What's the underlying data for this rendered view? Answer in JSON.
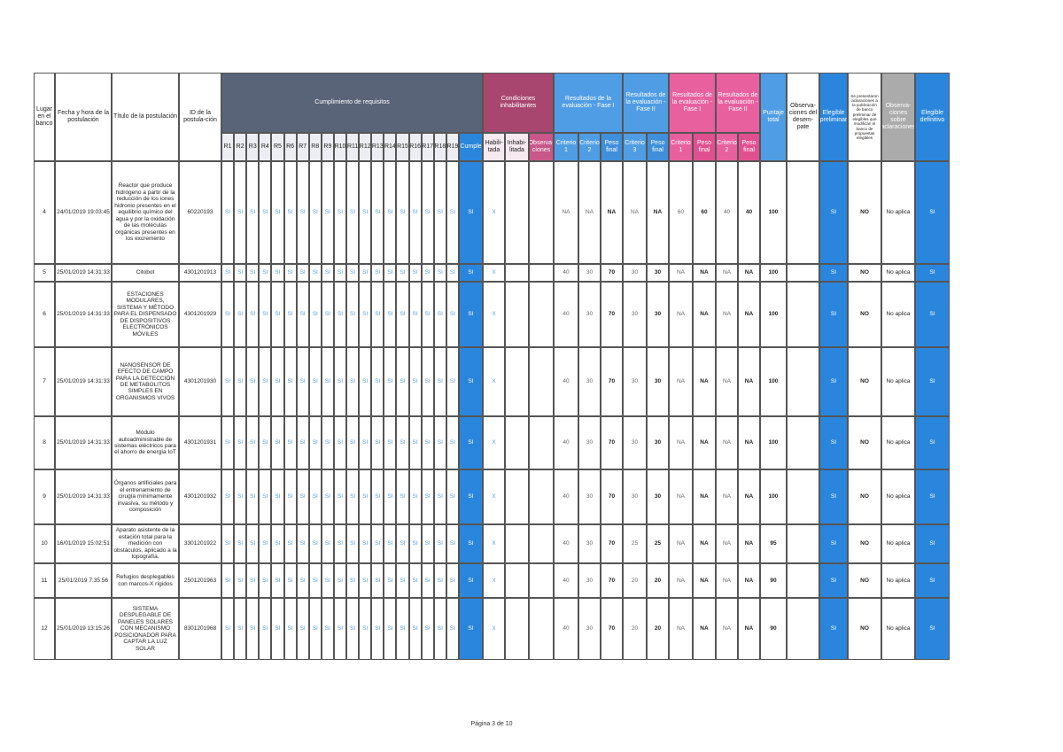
{
  "header": {
    "groups": [
      "Cumplimiento de requisitos",
      "Condiciones inhabilitantes",
      "Resultados de la evaluación - Fase I",
      "Resultados de la evaluación - Fase II",
      "Resultados de la evaluación - Fase I",
      "Resultados de la evaluación - Fase II"
    ],
    "columns": [
      "Lugar en el banco",
      "Fecha y hora de la postulación",
      "Título de la postulación",
      "ID de la postula-ción",
      "R1",
      "R2",
      "R3",
      "R4",
      "R5",
      "R6",
      "R7",
      "R8",
      "R9",
      "R10",
      "R11",
      "R12",
      "R13",
      "R14",
      "R15",
      "R16",
      "R17",
      "R18",
      "R19",
      "Cumple",
      "Habili-tada",
      "Inhabi-litada",
      "Observa-ciones",
      "Criterio 1",
      "Criterio 2",
      "Peso final",
      "Criterio 3",
      "Peso final",
      "Criterio 1",
      "Peso final",
      "Criterio 2",
      "Peso final",
      "Puntaje total",
      "Observa-ciones del desem-pate",
      "Elegible preliminar",
      "Se presentaron aclaraciones a la publicación de banco preliminar de elegibles que modifican el banco de propuestas elegibles",
      "Observa-ciones sobre aclaraciones",
      "Elegible definitivo"
    ]
  },
  "table": {
    "rows": [
      {
        "lugar": 4,
        "fecha": "24/01/2019 19:03:45",
        "titulo": "Reactor que produce hidrógeno a partir de la reducción de los iones hidronio presentes en el equilibrio químico del agua y por la oxidación de las moléculas orgánicas presentes en los excremento",
        "id": "60220193",
        "requisitos": [
          "SI",
          "SI",
          "SI",
          "SI",
          "SI",
          "SI",
          "SI",
          "SI",
          "SI",
          "SI",
          "SI",
          "SI",
          "SI",
          "SI",
          "SI",
          "SI",
          "SI",
          "SI",
          "SI"
        ],
        "cumple": "SI",
        "habilitada": "X",
        "fase1": [
          "NA",
          "NA",
          "NA"
        ],
        "fase2": [
          "NA",
          "NA"
        ],
        "fase1b": [
          60,
          60
        ],
        "fase2b": [
          40,
          40
        ],
        "puntaje_total": 100,
        "elegible_preliminar": "SI",
        "aclaraciones": "NO",
        "observaciones_aclaraciones": "No aplica",
        "elegible_definitivo": "SI"
      },
      {
        "lugar": 5,
        "fecha": "25/01/2019 14:31:33",
        "titulo": "Citobot",
        "id": "4301201913",
        "requisitos": [
          "SI",
          "SI",
          "SI",
          "SI",
          "SI",
          "SI",
          "SI",
          "SI",
          "SI",
          "SI",
          "SI",
          "SI",
          "SI",
          "SI",
          "SI",
          "SI",
          "SI",
          "SI",
          "SI"
        ],
        "cumple": "SI",
        "habilitada": "X",
        "fase1": [
          40,
          30,
          70
        ],
        "fase2": [
          30,
          30
        ],
        "fase1b": [
          "NA",
          "NA"
        ],
        "fase2b": [
          "NA",
          "NA"
        ],
        "puntaje_total": 100,
        "elegible_preliminar": "SI",
        "aclaraciones": "NO",
        "observaciones_aclaraciones": "No aplica",
        "elegible_definitivo": "SI"
      },
      {
        "lugar": 6,
        "fecha": "25/01/2019 14:31:33",
        "titulo": "ESTACIONES MODULARES, SISTEMA Y MÉTODO PARA EL DISPENSADO DE DISPOSITIVOS ELECTRÓNICOS MÓVILES",
        "id": "4301201929",
        "requisitos": [
          "SI",
          "SI",
          "SI",
          "SI",
          "SI",
          "SI",
          "SI",
          "SI",
          "SI",
          "SI",
          "SI",
          "SI",
          "SI",
          "SI",
          "SI",
          "SI",
          "SI",
          "SI",
          "SI"
        ],
        "cumple": "SI",
        "habilitada": "X",
        "fase1": [
          40,
          30,
          70
        ],
        "fase2": [
          30,
          30
        ],
        "fase1b": [
          "NA",
          "NA"
        ],
        "fase2b": [
          "NA",
          "NA"
        ],
        "puntaje_total": 100,
        "elegible_preliminar": "SI",
        "aclaraciones": "NO",
        "observaciones_aclaraciones": "No aplica",
        "elegible_definitivo": "SI"
      },
      {
        "lugar": 7,
        "fecha": "25/01/2019 14:31:33",
        "titulo": "NANOSENSOR DE EFECTO DE CAMPO PARA LA DETECCIÓN DE METABOLITOS SIMPLES EN ORGANISMOS VIVOS",
        "id": "4301201930",
        "requisitos": [
          "SI",
          "SI",
          "SI",
          "SI",
          "SI",
          "SI",
          "SI",
          "SI",
          "SI",
          "SI",
          "SI",
          "SI",
          "SI",
          "SI",
          "SI",
          "SI",
          "SI",
          "SI",
          "SI"
        ],
        "cumple": "SI",
        "habilitada": "X",
        "fase1": [
          40,
          30,
          70
        ],
        "fase2": [
          30,
          30
        ],
        "fase1b": [
          "NA",
          "NA"
        ],
        "fase2b": [
          "NA",
          "NA"
        ],
        "puntaje_total": 100,
        "elegible_preliminar": "SI",
        "aclaraciones": "NO",
        "observaciones_aclaraciones": "No aplica",
        "elegible_definitivo": "SI"
      },
      {
        "lugar": 8,
        "fecha": "25/01/2019 14:31:33",
        "titulo": "Módulo autoadministrable de sistemas eléctricos para el ahorro de energía IoT",
        "id": "4301201931",
        "requisitos": [
          "SI",
          "SI",
          "SI",
          "SI",
          "SI",
          "SI",
          "SI",
          "SI",
          "SI",
          "SI",
          "SI",
          "SI",
          "SI",
          "SI",
          "SI",
          "SI",
          "SI",
          "SI",
          "SI"
        ],
        "cumple": "SI",
        "habilitada": "X",
        "fase1": [
          40,
          30,
          70
        ],
        "fase2": [
          30,
          30
        ],
        "fase1b": [
          "NA",
          "NA"
        ],
        "fase2b": [
          "NA",
          "NA"
        ],
        "puntaje_total": 100,
        "elegible_preliminar": "SI",
        "aclaraciones": "NO",
        "observaciones_aclaraciones": "No aplica",
        "elegible_definitivo": "SI"
      },
      {
        "lugar": 9,
        "fecha": "25/01/2019 14:31:33",
        "titulo": "Órganos artificiales para el entrenamiento de cirugía mínimamente invasiva, su método y composición",
        "id": "4301201932",
        "requisitos": [
          "SI",
          "SI",
          "SI",
          "SI",
          "SI",
          "SI",
          "SI",
          "SI",
          "SI",
          "SI",
          "SI",
          "SI",
          "SI",
          "SI",
          "SI",
          "SI",
          "SI",
          "SI",
          "SI"
        ],
        "cumple": "SI",
        "habilitada": "X",
        "fase1": [
          40,
          30,
          70
        ],
        "fase2": [
          30,
          30
        ],
        "fase1b": [
          "NA",
          "NA"
        ],
        "fase2b": [
          "NA",
          "NA"
        ],
        "puntaje_total": 100,
        "elegible_preliminar": "SI",
        "aclaraciones": "NO",
        "observaciones_aclaraciones": "No aplica",
        "elegible_definitivo": "SI"
      },
      {
        "lugar": 10,
        "fecha": "16/01/2019 15:02:51",
        "titulo": "Aparato asistente de la estación total para la medición con obstáculos, aplicado a la topografía.",
        "id": "3301201922",
        "requisitos": [
          "SI",
          "SI",
          "SI",
          "SI",
          "SI",
          "SI",
          "SI",
          "SI",
          "SI",
          "SI",
          "SI",
          "SI",
          "SI",
          "SI",
          "SI",
          "SI",
          "SI",
          "SI",
          "SI"
        ],
        "cumple": "SI",
        "habilitada": "X",
        "fase1": [
          40,
          30,
          70
        ],
        "fase2": [
          25,
          25
        ],
        "fase1b": [
          "NA",
          "NA"
        ],
        "fase2b": [
          "NA",
          "NA"
        ],
        "puntaje_total": 95,
        "elegible_preliminar": "SI",
        "aclaraciones": "NO",
        "observaciones_aclaraciones": "No aplica",
        "elegible_definitivo": "SI"
      },
      {
        "lugar": 11,
        "fecha": "25/01/2019 7:35:56",
        "titulo": "Refugios desplegables con marcos-X rígidos",
        "id": "2501201963",
        "requisitos": [
          "SI",
          "SI",
          "SI",
          "SI",
          "SI",
          "SI",
          "SI",
          "SI",
          "SI",
          "SI",
          "SI",
          "SI",
          "SI",
          "SI",
          "SI",
          "SI",
          "SI",
          "SI",
          "SI"
        ],
        "cumple": "SI",
        "habilitada": "X",
        "fase1": [
          40,
          30,
          70
        ],
        "fase2": [
          20,
          20
        ],
        "fase1b": [
          "NA",
          "NA"
        ],
        "fase2b": [
          "NA",
          "NA"
        ],
        "puntaje_total": 90,
        "elegible_preliminar": "SI",
        "aclaraciones": "NO",
        "observaciones_aclaraciones": "No aplica",
        "elegible_definitivo": "SI"
      },
      {
        "lugar": 12,
        "fecha": "25/01/2019 13:15:26",
        "titulo": "SISTEMA DESPLEGABLE DE PANELES SOLARES CON MECANISMO POSICIONADOR PARA CAPTAR LA LUZ SOLAR",
        "id": "8301201968",
        "requisitos": [
          "SI",
          "SI",
          "SI",
          "SI",
          "SI",
          "SI",
          "SI",
          "SI",
          "SI",
          "SI",
          "SI",
          "SI",
          "SI",
          "SI",
          "SI",
          "SI",
          "SI",
          "SI",
          "SI"
        ],
        "cumple": "SI",
        "habilitada": "X",
        "fase1": [
          40,
          30,
          70
        ],
        "fase2": [
          20,
          20
        ],
        "fase1b": [
          "NA",
          "NA"
        ],
        "fase2b": [
          "NA",
          "NA"
        ],
        "puntaje_total": 90,
        "elegible_preliminar": "SI",
        "aclaraciones": "NO",
        "observaciones_aclaraciones": "No aplica",
        "elegible_definitivo": "SI"
      }
    ]
  },
  "footer": {
    "page": "Página 3 de 10"
  }
}
